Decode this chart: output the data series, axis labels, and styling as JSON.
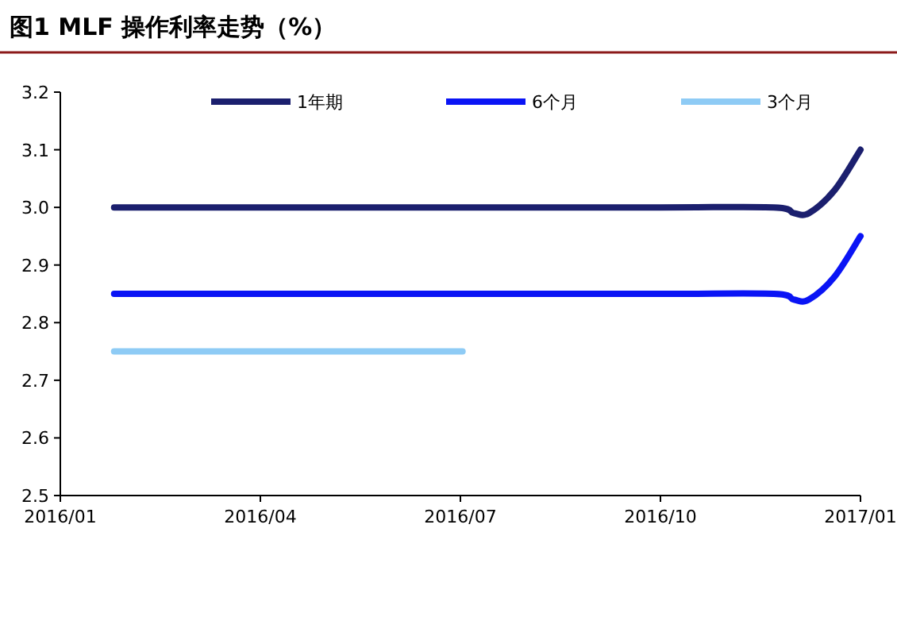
{
  "chart_data": {
    "type": "line",
    "title": "图1  MLF 操作利率走势（%）",
    "series": [
      {
        "name": "1年期",
        "color": "#1b1f6e",
        "x": [
          "2016-01-26",
          "2016-04-01",
          "2016-07-01",
          "2016-10-01",
          "2016-11-22",
          "2016-12-01",
          "2016-12-08",
          "2016-12-20",
          "2017-01-01"
        ],
        "values": [
          3.0,
          3.0,
          3.0,
          3.0,
          3.0,
          2.99,
          2.99,
          3.03,
          3.1
        ]
      },
      {
        "name": "6个月",
        "color": "#0a14f5",
        "x": [
          "2016-01-26",
          "2016-04-01",
          "2016-07-01",
          "2016-10-01",
          "2016-11-22",
          "2016-12-01",
          "2016-12-08",
          "2016-12-20",
          "2017-01-01"
        ],
        "values": [
          2.85,
          2.85,
          2.85,
          2.85,
          2.85,
          2.84,
          2.84,
          2.88,
          2.95
        ]
      },
      {
        "name": "3个月",
        "color": "#8ecbf5",
        "x": [
          "2016-01-26",
          "2016-04-01",
          "2016-07-02"
        ],
        "values": [
          2.75,
          2.75,
          2.75
        ]
      }
    ],
    "xlim": [
      "2016-01",
      "2017-01"
    ],
    "xticks": [
      {
        "value": "2016-01",
        "label": "2016/01"
      },
      {
        "value": "2016-04",
        "label": "2016/04"
      },
      {
        "value": "2016-07",
        "label": "2016/07"
      },
      {
        "value": "2016-10",
        "label": "2016/10"
      },
      {
        "value": "2017-01",
        "label": "2017/01"
      }
    ],
    "ylim": [
      2.5,
      3.2
    ],
    "yticks": [
      2.5,
      2.6,
      2.7,
      2.8,
      2.9,
      {
        "value": 3.0,
        "label": "3.0"
      },
      3.1,
      3.2
    ],
    "legend": "top"
  }
}
